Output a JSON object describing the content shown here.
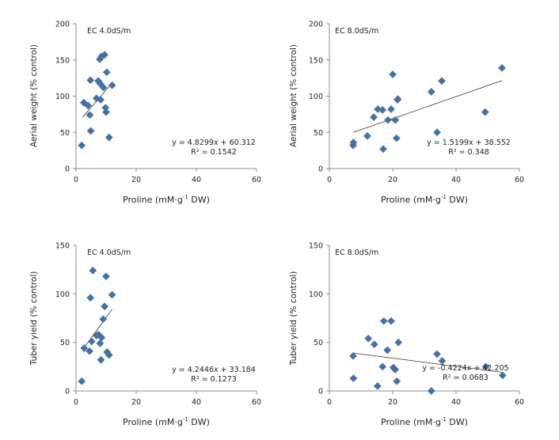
{
  "chart_data": [
    {
      "type": "scatter",
      "title": "EC 4.0dS/m",
      "xlabel_main": "Proline (mM",
      "xlabel_sup": "-1",
      "xlabel_end": " DW)",
      "xlabel_g": "g",
      "ylabel": "Aerial weight (% control)",
      "xlim": [
        0,
        60
      ],
      "ylim": [
        0,
        200
      ],
      "xticks": [
        0,
        20,
        40,
        60
      ],
      "yticks": [
        0,
        50,
        100,
        150,
        200
      ],
      "equation": "y = 4.8299x + 60.312",
      "r2_label": "R² = 0.1542",
      "trend": {
        "slope": 4.8299,
        "intercept": 60.312,
        "x_range": [
          2.2,
          11.8
        ]
      },
      "series": [
        {
          "name": "Aerial weight",
          "color": "#4472A8",
          "x": [
            1.9,
            2.6,
            4.0,
            4.6,
            4.8,
            4.9,
            6.8,
            7.4,
            7.9,
            8.1,
            8.2,
            8.5,
            9.1,
            9.5,
            9.8,
            10.0,
            10.2,
            11.0,
            12.0
          ],
          "y": [
            32,
            91,
            87,
            74,
            122,
            52,
            97,
            121,
            151,
            117,
            95,
            155,
            112,
            157,
            84,
            78,
            133,
            43,
            115
          ]
        }
      ]
    },
    {
      "type": "scatter",
      "title": "EC 8.0dS/m",
      "xlabel_main": "Proline (mM",
      "xlabel_sup": "-1",
      "xlabel_end": " DW)",
      "xlabel_g": "g",
      "ylabel": "Aerial weight (% control)",
      "xlim": [
        0,
        60
      ],
      "ylim": [
        0,
        200
      ],
      "xticks": [
        0,
        20,
        40,
        60
      ],
      "yticks": [
        0,
        50,
        100,
        150,
        200
      ],
      "equation": "y = 1.5199x + 38.552",
      "r2_label": "R² = 0.348",
      "trend": {
        "slope": 1.5199,
        "intercept": 38.552,
        "x_range": [
          7.5,
          54.5
        ]
      },
      "series": [
        {
          "name": "Aerial weight",
          "color": "#4472A8",
          "x": [
            7.5,
            7.6,
            12.0,
            14.0,
            15.3,
            16.8,
            17.0,
            18.5,
            19.5,
            20.0,
            20.8,
            21.2,
            21.5,
            21.6,
            32.2,
            34.0,
            35.5,
            49.2,
            54.5
          ],
          "y": [
            32,
            36,
            45,
            71,
            82,
            81,
            27,
            67,
            82,
            130,
            67,
            42,
            95,
            96,
            106,
            50,
            121,
            78,
            139
          ]
        }
      ]
    },
    {
      "type": "scatter",
      "title": "EC 4.0dS/m",
      "xlabel_main": "Proline (mM",
      "xlabel_sup": "-1",
      "xlabel_end": " DW)",
      "xlabel_g": "g",
      "ylabel": "Tuber yield (% control)",
      "xlim": [
        0,
        60
      ],
      "ylim": [
        0,
        150
      ],
      "xticks": [
        0,
        20,
        40,
        60
      ],
      "yticks": [
        0,
        50,
        100,
        150
      ],
      "equation": "y = 4.2446x + 33.184",
      "r2_label": "R² = 0.1273",
      "trend": {
        "slope": 4.2446,
        "intercept": 33.184,
        "x_range": [
          2.5,
          12.0
        ]
      },
      "series": [
        {
          "name": "Tuber yield",
          "color": "#4472A8",
          "x": [
            1.9,
            2.7,
            4.5,
            4.8,
            5.2,
            5.6,
            6.8,
            7.5,
            8.0,
            8.3,
            8.5,
            9.0,
            9.5,
            10.0,
            10.3,
            11.0,
            12.0
          ],
          "y": [
            10,
            44,
            41,
            96,
            51,
            124,
            57,
            58,
            49,
            32,
            55,
            74,
            87,
            118,
            40,
            37,
            99
          ]
        }
      ]
    },
    {
      "type": "scatter",
      "title": "EC 8.0dS/m",
      "xlabel_main": "Proline (mM",
      "xlabel_sup": "-1",
      "xlabel_end": " DW)",
      "xlabel_g": "g",
      "ylabel": "Tuber yield (% control)",
      "xlim": [
        0,
        60
      ],
      "ylim": [
        0,
        150
      ],
      "xticks": [
        0,
        20,
        40,
        60
      ],
      "yticks": [
        0,
        50,
        100,
        150
      ],
      "equation": "y = -0.4224x + 42.205",
      "r2_label": "R² = 0.0683",
      "trend": {
        "slope": -0.4224,
        "intercept": 42.205,
        "x_range": [
          7.5,
          54.5
        ]
      },
      "series": [
        {
          "name": "Tuber yield",
          "color": "#4472A8",
          "x": [
            7.5,
            7.6,
            12.3,
            14.2,
            15.2,
            16.8,
            17.2,
            18.3,
            19.5,
            20.2,
            20.8,
            21.3,
            21.8,
            32.2,
            34.0,
            35.6,
            49.4,
            54.7
          ],
          "y": [
            36,
            13,
            54,
            48,
            5,
            25,
            72,
            42,
            72,
            24,
            22,
            10,
            50,
            0,
            38,
            31,
            25,
            16
          ]
        }
      ]
    }
  ]
}
